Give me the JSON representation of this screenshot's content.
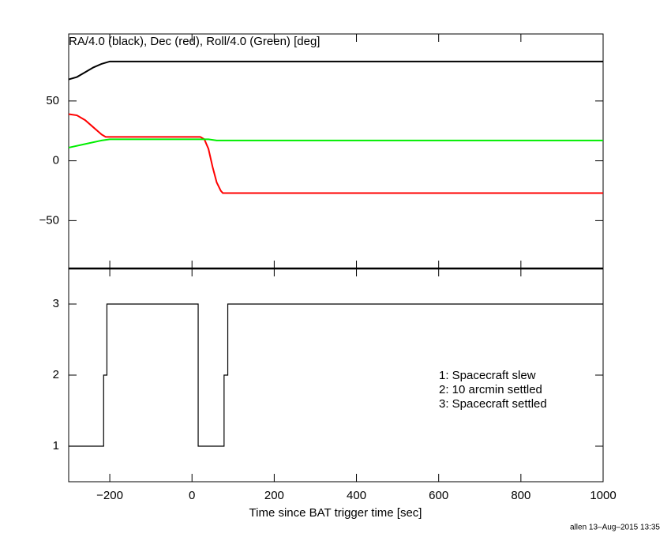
{
  "chart_data": [
    {
      "type": "line",
      "title": "RA/4.0 (black), Dec (red), Roll/4.0 (Green) [deg]",
      "xlim": [
        -300,
        1000
      ],
      "xticks": [
        -200,
        0,
        200,
        400,
        600,
        800,
        1000
      ],
      "ylim": [
        -90,
        106
      ],
      "yticks": [
        {
          "value": -50,
          "label": "−50"
        },
        0,
        50
      ],
      "series": [
        {
          "name": "RA/4.0",
          "color": "#000000",
          "x": [
            -300,
            -280,
            -260,
            -240,
            -220,
            -200,
            1000
          ],
          "values": [
            68,
            70,
            74,
            78,
            81,
            83,
            83
          ]
        },
        {
          "name": "Dec",
          "color": "#ff0000",
          "x": [
            -300,
            -280,
            -260,
            -240,
            -220,
            -210,
            20,
            30,
            40,
            50,
            60,
            70,
            75,
            1000
          ],
          "values": [
            39,
            38,
            34,
            28,
            22,
            20,
            20,
            18,
            10,
            -5,
            -18,
            -25,
            -27,
            -27
          ]
        },
        {
          "name": "Roll/4.0",
          "color": "#00ee00",
          "x": [
            -300,
            -260,
            -220,
            -200,
            40,
            60,
            1000
          ],
          "values": [
            11,
            14,
            17,
            18,
            18,
            17,
            17
          ]
        }
      ]
    },
    {
      "type": "line",
      "xlabel": "Time since BAT trigger time [sec]",
      "xlim": [
        -300,
        1000
      ],
      "xticks": [
        {
          "value": -200,
          "label": "−200"
        },
        0,
        200,
        400,
        600,
        800,
        1000
      ],
      "ylim": [
        0.5,
        3.5
      ],
      "yticks": [
        1,
        2,
        3
      ],
      "annotations": [
        "1: Spacecraft slew",
        "2: 10 arcmin settled",
        "3: Spacecraft settled"
      ],
      "series": [
        {
          "color": "#000000",
          "x": [
            -300,
            -215,
            -215,
            -207,
            -207,
            15,
            15,
            78,
            78,
            87,
            87,
            1000
          ],
          "values": [
            1,
            1,
            2,
            2,
            3,
            3,
            1,
            1,
            2,
            2,
            3,
            3
          ]
        }
      ]
    }
  ],
  "footer": "allen 13–Aug–2015 13:35"
}
